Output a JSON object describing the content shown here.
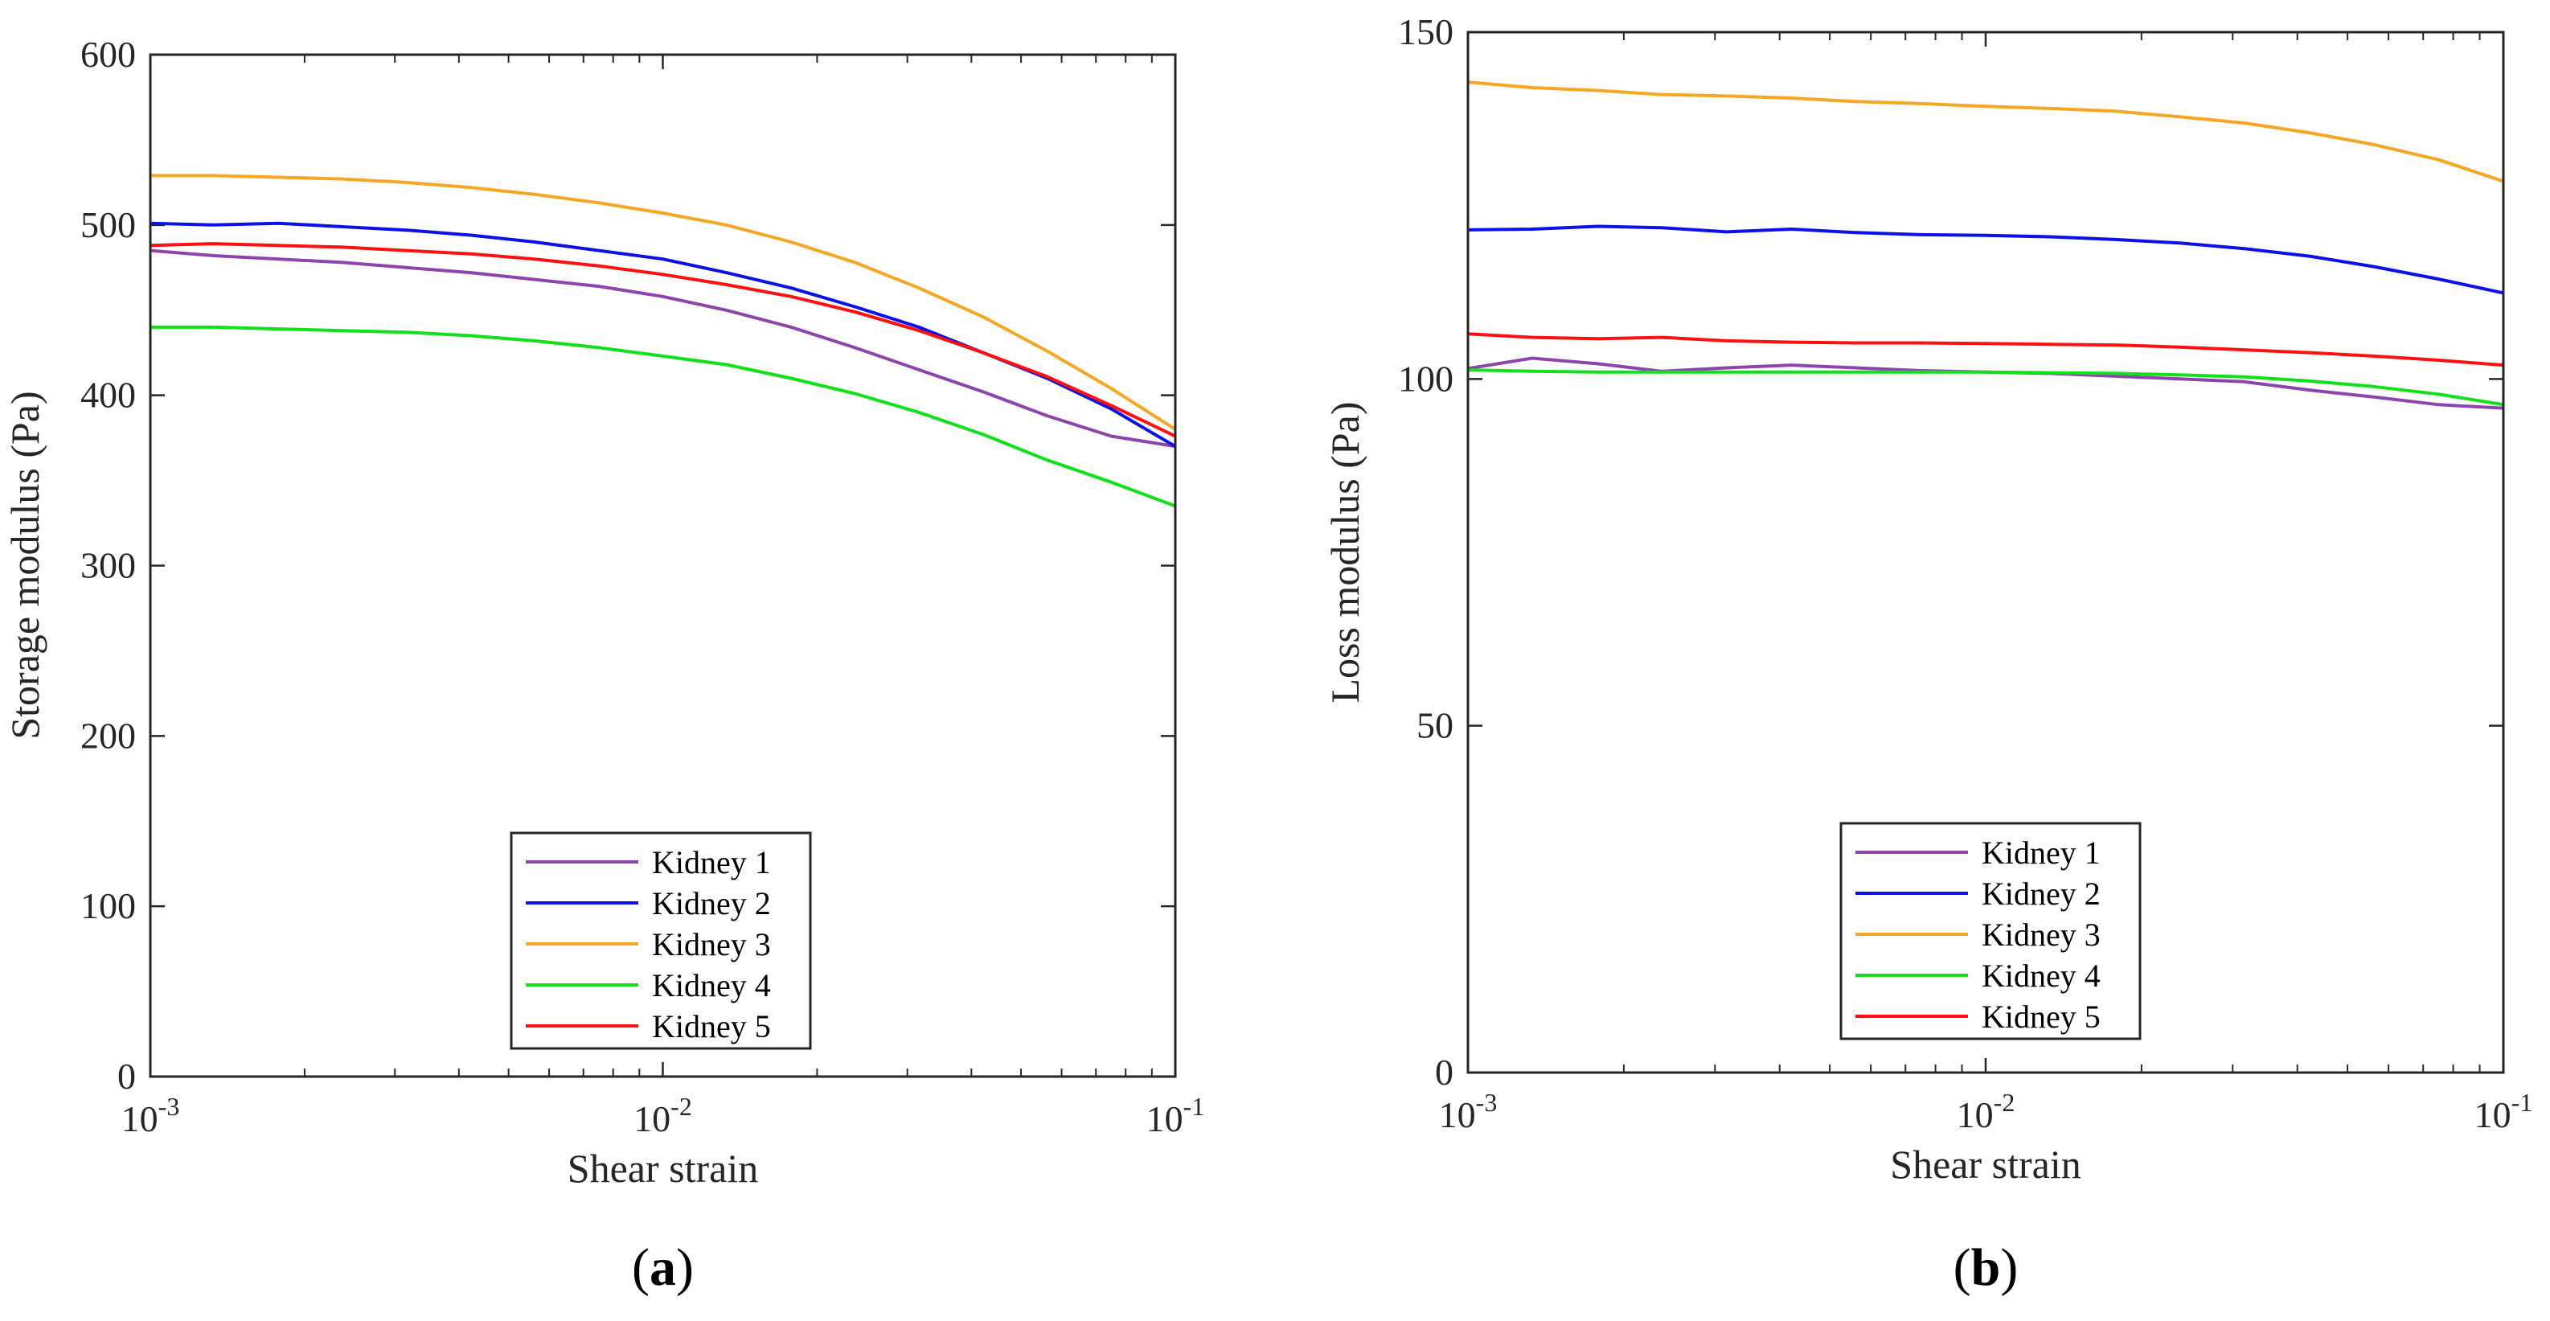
{
  "chart_data": [
    {
      "type": "line",
      "panel_label": {
        "open": "(",
        "letter": "a",
        "close": ")"
      },
      "title": "",
      "xlabel": "Shear strain",
      "ylabel": "Storage modulus (Pa)",
      "xscale": "log",
      "xlim": [
        0.001,
        0.1
      ],
      "ylim": [
        0,
        600
      ],
      "xticks": [
        {
          "base": "10",
          "exp": "-3"
        },
        {
          "base": "10",
          "exp": "-2"
        },
        {
          "base": "10",
          "exp": "-1"
        }
      ],
      "yticks": [
        "0",
        "100",
        "200",
        "300",
        "400",
        "500",
        "600"
      ],
      "legend_position": "bottom-center",
      "x": [
        0.001,
        0.00133,
        0.00178,
        0.00237,
        0.00316,
        0.00422,
        0.00562,
        0.0075,
        0.01,
        0.0133,
        0.0178,
        0.0237,
        0.0316,
        0.0422,
        0.0562,
        0.075,
        0.1
      ],
      "series": [
        {
          "name": "Kidney 1",
          "color": "#8e44ad",
          "values": [
            485,
            482,
            480,
            478,
            475,
            472,
            468,
            464,
            458,
            450,
            440,
            428,
            415,
            402,
            388,
            376,
            370
          ]
        },
        {
          "name": "Kidney 2",
          "color": "#0a12e6",
          "values": [
            501,
            500,
            501,
            499,
            497,
            494,
            490,
            485,
            480,
            472,
            463,
            452,
            440,
            425,
            410,
            392,
            370
          ]
        },
        {
          "name": "Kidney 3",
          "color": "#f5a623",
          "values": [
            529,
            529,
            528,
            527,
            525,
            522,
            518,
            513,
            507,
            500,
            490,
            478,
            463,
            446,
            426,
            404,
            380
          ]
        },
        {
          "name": "Kidney 4",
          "color": "#12e01a",
          "values": [
            440,
            440,
            439,
            438,
            437,
            435,
            432,
            428,
            423,
            418,
            410,
            401,
            390,
            377,
            362,
            349,
            335
          ]
        },
        {
          "name": "Kidney 5",
          "color": "#ff1010",
          "values": [
            488,
            489,
            488,
            487,
            485,
            483,
            480,
            476,
            471,
            465,
            458,
            449,
            438,
            425,
            411,
            394,
            376
          ]
        }
      ]
    },
    {
      "type": "line",
      "panel_label": {
        "open": "(",
        "letter": "b",
        "close": ")"
      },
      "title": "",
      "xlabel": "Shear strain",
      "ylabel": "Loss modulus (Pa)",
      "xscale": "log",
      "xlim": [
        0.001,
        0.1
      ],
      "ylim": [
        0,
        150
      ],
      "xticks": [
        {
          "base": "10",
          "exp": "-3"
        },
        {
          "base": "10",
          "exp": "-2"
        },
        {
          "base": "10",
          "exp": "-1"
        }
      ],
      "yticks": [
        "0",
        "50",
        "100",
        "150"
      ],
      "legend_position": "bottom-center",
      "x": [
        0.001,
        0.00133,
        0.00178,
        0.00237,
        0.00316,
        0.00422,
        0.00562,
        0.0075,
        0.01,
        0.0133,
        0.0178,
        0.0237,
        0.0316,
        0.0422,
        0.0562,
        0.075,
        0.1
      ],
      "series": [
        {
          "name": "Kidney 1",
          "color": "#8e44ad",
          "values": [
            101.5,
            103,
            102.2,
            101.1,
            101.6,
            102,
            101.6,
            101.2,
            101,
            100.8,
            100.4,
            100,
            99.6,
            98.4,
            97.4,
            96.3,
            95.8
          ]
        },
        {
          "name": "Kidney 2",
          "color": "#0a12e6",
          "values": [
            121.5,
            121.6,
            122,
            121.8,
            121.2,
            121.6,
            121.1,
            120.8,
            120.7,
            120.5,
            120.1,
            119.6,
            118.8,
            117.7,
            116.2,
            114.4,
            112.4
          ]
        },
        {
          "name": "Kidney 3",
          "color": "#f5a623",
          "values": [
            142.8,
            142,
            141.6,
            141,
            140.8,
            140.5,
            140,
            139.7,
            139.3,
            139,
            138.6,
            137.8,
            136.9,
            135.5,
            133.8,
            131.6,
            128.5
          ]
        },
        {
          "name": "Kidney 4",
          "color": "#12e01a",
          "values": [
            101.3,
            101.1,
            101,
            101,
            101,
            101,
            101,
            101,
            101,
            100.9,
            100.8,
            100.6,
            100.3,
            99.7,
            98.9,
            97.8,
            96.3
          ]
        },
        {
          "name": "Kidney 5",
          "color": "#ff1010",
          "values": [
            106.5,
            106,
            105.8,
            106,
            105.5,
            105.3,
            105.2,
            105.2,
            105.1,
            105,
            104.9,
            104.6,
            104.2,
            103.8,
            103.3,
            102.7,
            102
          ]
        }
      ]
    }
  ]
}
